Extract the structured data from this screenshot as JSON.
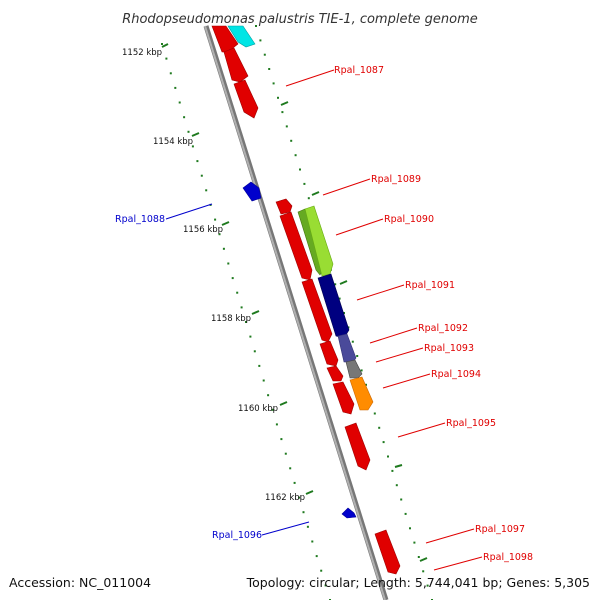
{
  "title": "Rhodopseudomonas palustris TIE-1, complete genome",
  "footer": {
    "accession": "Accession: NC_011004",
    "summary": "Topology: circular; Length: 5,744,041 bp; Genes: 5,305"
  },
  "colors": {
    "backbone": "#8a8a8a",
    "tick": "#1f7a1f",
    "forward_label": "#e00000",
    "reverse_label": "#0000cc"
  },
  "tick_labels": [
    "1152 kbp",
    "1154 kbp",
    "1156 kbp",
    "1158 kbp",
    "1160 kbp",
    "1162 kbp"
  ],
  "genes": [
    {
      "label": "Rpal_1087",
      "strand": "forward",
      "color": "#e00000"
    },
    {
      "label": "Rpal_1088",
      "strand": "reverse",
      "color": "#0000cc"
    },
    {
      "label": "Rpal_1089",
      "strand": "forward",
      "color": "#e00000"
    },
    {
      "label": "Rpal_1090",
      "strand": "forward",
      "color": "#e00000"
    },
    {
      "label": "Rpal_1091",
      "strand": "forward",
      "color": "#e00000"
    },
    {
      "label": "Rpal_1092",
      "strand": "forward",
      "color": "#e00000"
    },
    {
      "label": "Rpal_1093",
      "strand": "forward",
      "color": "#e00000"
    },
    {
      "label": "Rpal_1094",
      "strand": "forward",
      "color": "#e00000"
    },
    {
      "label": "Rpal_1095",
      "strand": "forward",
      "color": "#e00000"
    },
    {
      "label": "Rpal_1096",
      "strand": "reverse",
      "color": "#0000cc"
    },
    {
      "label": "Rpal_1097",
      "strand": "forward",
      "color": "#e00000"
    },
    {
      "label": "Rpal_1098",
      "strand": "forward",
      "color": "#e00000"
    }
  ],
  "feature_colors": [
    "#00e5e5",
    "#99dd33",
    "#66aa22",
    "#000080",
    "#4a4a9a",
    "#777777",
    "#ff8c00"
  ]
}
